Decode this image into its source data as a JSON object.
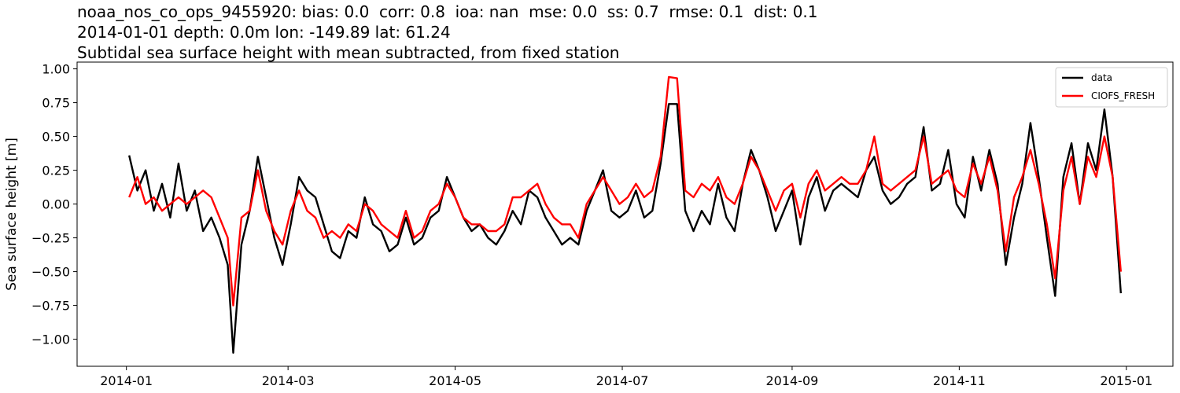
{
  "title_lines": [
    "noaa_nos_co_ops_9455920: bias: 0.0  corr: 0.8  ioa: nan  mse: 0.0  ss: 0.7  rmse: 0.1  dist: 0.1",
    "2014-01-01 depth: 0.0m lon: -149.89 lat: 61.24",
    "Subtidal sea surface height with mean subtracted, from fixed station"
  ],
  "chart_data": {
    "type": "line",
    "title": "noaa_nos_co_ops_9455920: bias: 0.0  corr: 0.8  ioa: nan  mse: 0.0  ss: 0.7  rmse: 0.1  dist: 0.1 / 2014-01-01 depth: 0.0m lon: -149.89 lat: 61.24 / Subtidal sea surface height with mean subtracted, from fixed station",
    "xlabel": "",
    "ylabel": "Sea surface height [m]",
    "xlim": [
      "2013-12-14",
      "2015-01-18"
    ],
    "ylim": [
      -1.2,
      1.05
    ],
    "x_ticks": [
      "2014-01",
      "2014-03",
      "2014-05",
      "2014-07",
      "2014-09",
      "2014-11",
      "2015-01"
    ],
    "y_ticks": [
      -1.0,
      -0.75,
      -0.5,
      -0.25,
      0.0,
      0.25,
      0.5,
      0.75,
      1.0
    ],
    "y_tick_labels": [
      "−1.00",
      "−0.75",
      "−0.50",
      "−0.25",
      "0.00",
      "0.25",
      "0.50",
      "0.75",
      "1.00"
    ],
    "grid": false,
    "legend_position": "top-right",
    "x": [
      "2014-01-02",
      "2014-01-05",
      "2014-01-08",
      "2014-01-11",
      "2014-01-14",
      "2014-01-17",
      "2014-01-20",
      "2014-01-23",
      "2014-01-26",
      "2014-01-29",
      "2014-02-01",
      "2014-02-04",
      "2014-02-07",
      "2014-02-09",
      "2014-02-12",
      "2014-02-15",
      "2014-02-18",
      "2014-02-21",
      "2014-02-24",
      "2014-02-27",
      "2014-03-02",
      "2014-03-05",
      "2014-03-08",
      "2014-03-11",
      "2014-03-14",
      "2014-03-17",
      "2014-03-20",
      "2014-03-23",
      "2014-03-26",
      "2014-03-29",
      "2014-04-01",
      "2014-04-04",
      "2014-04-07",
      "2014-04-10",
      "2014-04-13",
      "2014-04-16",
      "2014-04-19",
      "2014-04-22",
      "2014-04-25",
      "2014-04-28",
      "2014-05-01",
      "2014-05-04",
      "2014-05-07",
      "2014-05-10",
      "2014-05-13",
      "2014-05-16",
      "2014-05-19",
      "2014-05-22",
      "2014-05-25",
      "2014-05-28",
      "2014-05-31",
      "2014-06-03",
      "2014-06-06",
      "2014-06-09",
      "2014-06-12",
      "2014-06-15",
      "2014-06-18",
      "2014-06-21",
      "2014-06-24",
      "2014-06-27",
      "2014-06-30",
      "2014-07-03",
      "2014-07-06",
      "2014-07-09",
      "2014-07-12",
      "2014-07-15",
      "2014-07-18",
      "2014-07-21",
      "2014-07-24",
      "2014-07-27",
      "2014-07-30",
      "2014-08-02",
      "2014-08-05",
      "2014-08-08",
      "2014-08-11",
      "2014-08-14",
      "2014-08-17",
      "2014-08-20",
      "2014-08-23",
      "2014-08-26",
      "2014-08-29",
      "2014-09-01",
      "2014-09-04",
      "2014-09-07",
      "2014-09-10",
      "2014-09-13",
      "2014-09-16",
      "2014-09-19",
      "2014-09-22",
      "2014-09-25",
      "2014-09-28",
      "2014-10-01",
      "2014-10-04",
      "2014-10-07",
      "2014-10-10",
      "2014-10-13",
      "2014-10-16",
      "2014-10-19",
      "2014-10-22",
      "2014-10-25",
      "2014-10-28",
      "2014-10-31",
      "2014-11-03",
      "2014-11-06",
      "2014-11-09",
      "2014-11-12",
      "2014-11-15",
      "2014-11-18",
      "2014-11-21",
      "2014-11-24",
      "2014-11-27",
      "2014-11-30",
      "2014-12-03",
      "2014-12-06",
      "2014-12-09",
      "2014-12-12",
      "2014-12-15",
      "2014-12-18",
      "2014-12-21",
      "2014-12-24",
      "2014-12-27",
      "2014-12-30"
    ],
    "series": [
      {
        "name": "data",
        "color": "#000000",
        "values": [
          0.36,
          0.1,
          0.25,
          -0.05,
          0.15,
          -0.1,
          0.3,
          -0.05,
          0.1,
          -0.2,
          -0.1,
          -0.25,
          -0.45,
          -1.1,
          -0.3,
          -0.05,
          0.35,
          0.05,
          -0.25,
          -0.45,
          -0.15,
          0.2,
          0.1,
          0.05,
          -0.15,
          -0.35,
          -0.4,
          -0.2,
          -0.25,
          0.05,
          -0.15,
          -0.2,
          -0.35,
          -0.3,
          -0.1,
          -0.3,
          -0.25,
          -0.1,
          -0.05,
          0.2,
          0.05,
          -0.1,
          -0.2,
          -0.15,
          -0.25,
          -0.3,
          -0.2,
          -0.05,
          -0.15,
          0.1,
          0.05,
          -0.1,
          -0.2,
          -0.3,
          -0.25,
          -0.3,
          -0.05,
          0.1,
          0.25,
          -0.05,
          -0.1,
          -0.05,
          0.1,
          -0.1,
          -0.05,
          0.3,
          0.74,
          0.74,
          -0.05,
          -0.2,
          -0.05,
          -0.15,
          0.15,
          -0.1,
          -0.2,
          0.15,
          0.4,
          0.25,
          0.05,
          -0.2,
          -0.05,
          0.1,
          -0.3,
          0.05,
          0.2,
          -0.05,
          0.1,
          0.15,
          0.1,
          0.05,
          0.25,
          0.35,
          0.1,
          0.0,
          0.05,
          0.15,
          0.2,
          0.57,
          0.1,
          0.15,
          0.4,
          0.0,
          -0.1,
          0.35,
          0.1,
          0.4,
          0.15,
          -0.45,
          -0.1,
          0.15,
          0.6,
          0.2,
          -0.25,
          -0.68,
          0.2,
          0.45,
          0.0,
          0.45,
          0.25,
          0.7,
          0.2,
          -0.66
        ]
      },
      {
        "name": "CIOFS_FRESH",
        "color": "#ff0000",
        "values": [
          0.05,
          0.2,
          0.0,
          0.05,
          -0.05,
          0.0,
          0.05,
          0.0,
          0.05,
          0.1,
          0.05,
          -0.1,
          -0.25,
          -0.75,
          -0.1,
          -0.05,
          0.25,
          -0.05,
          -0.2,
          -0.3,
          -0.05,
          0.1,
          -0.05,
          -0.1,
          -0.25,
          -0.2,
          -0.25,
          -0.15,
          -0.2,
          0.0,
          -0.05,
          -0.15,
          -0.2,
          -0.25,
          -0.05,
          -0.25,
          -0.2,
          -0.05,
          0.0,
          0.15,
          0.05,
          -0.1,
          -0.15,
          -0.15,
          -0.2,
          -0.2,
          -0.15,
          0.05,
          0.05,
          0.1,
          0.15,
          0.0,
          -0.1,
          -0.15,
          -0.15,
          -0.25,
          0.0,
          0.1,
          0.2,
          0.1,
          0.0,
          0.05,
          0.15,
          0.05,
          0.1,
          0.35,
          0.94,
          0.93,
          0.1,
          0.05,
          0.15,
          0.1,
          0.2,
          0.05,
          0.0,
          0.15,
          0.35,
          0.25,
          0.1,
          -0.05,
          0.1,
          0.15,
          -0.1,
          0.15,
          0.25,
          0.1,
          0.15,
          0.2,
          0.15,
          0.15,
          0.25,
          0.5,
          0.15,
          0.1,
          0.15,
          0.2,
          0.25,
          0.5,
          0.15,
          0.2,
          0.25,
          0.1,
          0.05,
          0.3,
          0.15,
          0.35,
          0.1,
          -0.35,
          0.05,
          0.2,
          0.4,
          0.15,
          -0.15,
          -0.55,
          0.1,
          0.35,
          0.0,
          0.35,
          0.2,
          0.5,
          0.2,
          -0.5
        ]
      }
    ]
  }
}
